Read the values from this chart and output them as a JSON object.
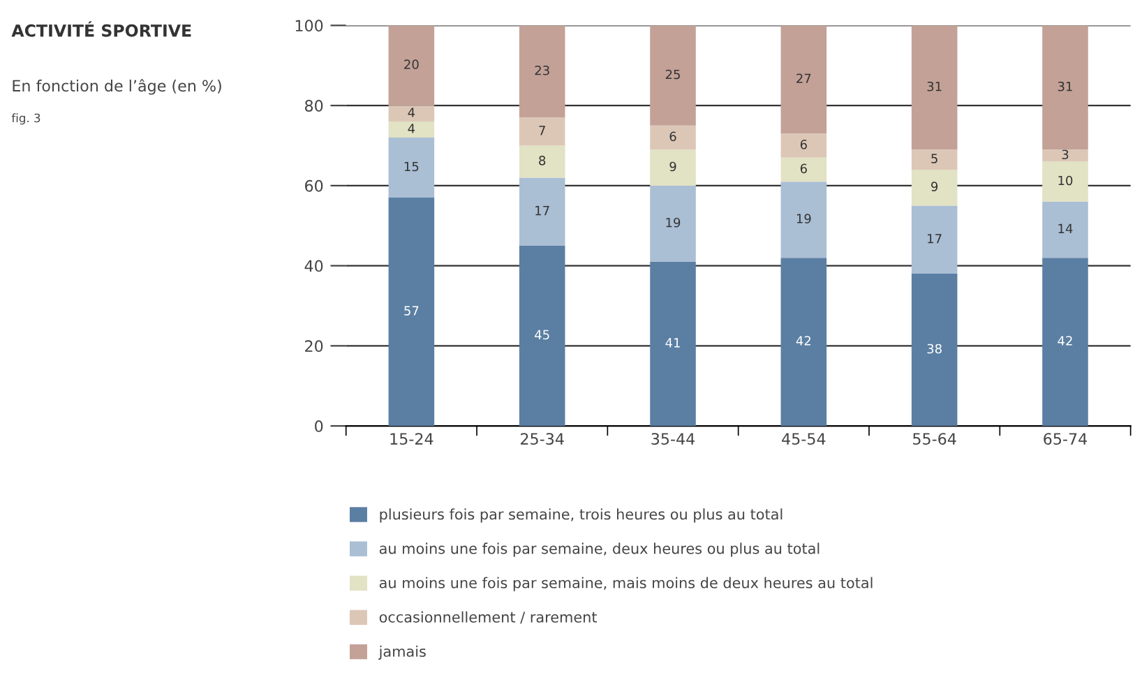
{
  "chart_data": {
    "type": "bar",
    "stacked": true,
    "title": "ACTIVITÉ SPORTIVE",
    "subtitle": "En fonction de l’âge (en %)",
    "annotations": [
      "fig. 3"
    ],
    "categories": [
      "15-24",
      "25-34",
      "35-44",
      "45-54",
      "55-64",
      "65-74"
    ],
    "series": [
      {
        "name": "plusieurs fois par semaine, trois heures ou plus au total",
        "color": "#5b7fa3",
        "values": [
          57,
          45,
          41,
          42,
          38,
          42
        ]
      },
      {
        "name": "au moins une fois par semaine, deux heures ou plus au total",
        "color": "#aabed4",
        "values": [
          15,
          17,
          19,
          19,
          17,
          14
        ]
      },
      {
        "name": "au moins une fois par semaine, mais moins de deux heures au total",
        "color": "#e2e2c4",
        "values": [
          4,
          8,
          9,
          6,
          9,
          10
        ]
      },
      {
        "name": "occasionnellement / rarement",
        "color": "#dcc7b7",
        "values": [
          4,
          7,
          6,
          6,
          5,
          3
        ]
      },
      {
        "name": "jamais",
        "color": "#c3a197",
        "values": [
          20,
          23,
          25,
          27,
          31,
          31
        ]
      }
    ],
    "ylim": [
      0,
      100
    ],
    "yticks": [
      0,
      20,
      40,
      60,
      80,
      100
    ],
    "grid": "y",
    "legend": "bottom",
    "data_labels": true
  }
}
